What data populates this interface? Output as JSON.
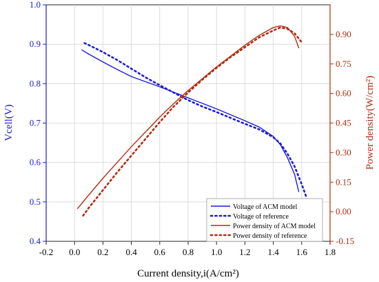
{
  "chart_data": {
    "type": "line",
    "xlabel": "Current density,i(A/cm²)",
    "ylabel_left": "Vcell(V)",
    "ylabel_right": "Power density(W/cm²)",
    "x_ticks": [
      "-0.2",
      "0.0",
      "0.2",
      "0.4",
      "0.6",
      "0.8",
      "1.0",
      "1.2",
      "1.4",
      "1.6",
      "1.8"
    ],
    "y_left_ticks": [
      "0.4",
      "0.5",
      "0.6",
      "0.7",
      "0.8",
      "0.9",
      "1.0"
    ],
    "y_right_ticks": [
      "-0.15",
      "0.00",
      "0.15",
      "0.30",
      "0.45",
      "0.60",
      "0.75",
      "0.90"
    ],
    "xlim": [
      -0.2,
      1.8
    ],
    "ylim_left": [
      0.4,
      1.0
    ],
    "ylim_right": [
      -0.15,
      1.05
    ],
    "grid": true,
    "legend_position": "bottom-right",
    "colors": {
      "voltage": "#1a1adb",
      "power": "#b22a10",
      "left_axis": "#1a1adb",
      "right_axis": "#b22a10"
    },
    "series": [
      {
        "name": "Voltage of ACM model",
        "axis": "left",
        "style": "solid",
        "color": "#1a1adb",
        "x": [
          0.05,
          0.1,
          0.2,
          0.3,
          0.4,
          0.5,
          0.6,
          0.7,
          0.8,
          0.9,
          1.0,
          1.1,
          1.2,
          1.3,
          1.4,
          1.45,
          1.5,
          1.55,
          1.58
        ],
        "y": [
          0.886,
          0.875,
          0.855,
          0.836,
          0.818,
          0.805,
          0.792,
          0.778,
          0.764,
          0.75,
          0.736,
          0.721,
          0.706,
          0.69,
          0.666,
          0.645,
          0.612,
          0.57,
          0.525
        ]
      },
      {
        "name": "Voltage of reference",
        "axis": "left",
        "style": "dotted",
        "color": "#1a1adb",
        "x": [
          0.07,
          0.1,
          0.2,
          0.3,
          0.4,
          0.5,
          0.6,
          0.7,
          0.8,
          0.9,
          1.0,
          1.1,
          1.2,
          1.3,
          1.4,
          1.45,
          1.5,
          1.55,
          1.6,
          1.63
        ],
        "y": [
          0.903,
          0.898,
          0.88,
          0.86,
          0.838,
          0.816,
          0.796,
          0.777,
          0.758,
          0.742,
          0.728,
          0.713,
          0.698,
          0.684,
          0.664,
          0.648,
          0.622,
          0.59,
          0.545,
          0.515
        ]
      },
      {
        "name": "Power density of ACM model",
        "axis": "right",
        "style": "solid",
        "color": "#b22a10",
        "x": [
          0.02,
          0.1,
          0.2,
          0.3,
          0.4,
          0.5,
          0.6,
          0.7,
          0.8,
          0.9,
          1.0,
          1.1,
          1.2,
          1.3,
          1.4,
          1.45,
          1.5,
          1.55,
          1.58
        ],
        "y": [
          0.015,
          0.085,
          0.17,
          0.25,
          0.33,
          0.405,
          0.48,
          0.55,
          0.615,
          0.675,
          0.735,
          0.79,
          0.845,
          0.895,
          0.935,
          0.943,
          0.935,
          0.89,
          0.83
        ]
      },
      {
        "name": "Power density of reference",
        "axis": "right",
        "style": "dotted",
        "color": "#b22a10",
        "x": [
          0.06,
          0.1,
          0.2,
          0.3,
          0.4,
          0.5,
          0.6,
          0.7,
          0.8,
          0.9,
          1.0,
          1.1,
          1.2,
          1.3,
          1.4,
          1.45,
          1.5,
          1.55,
          1.6
        ],
        "y": [
          -0.02,
          0.02,
          0.11,
          0.2,
          0.285,
          0.37,
          0.455,
          0.535,
          0.605,
          0.67,
          0.73,
          0.785,
          0.835,
          0.885,
          0.92,
          0.935,
          0.928,
          0.905,
          0.86
        ]
      }
    ]
  }
}
